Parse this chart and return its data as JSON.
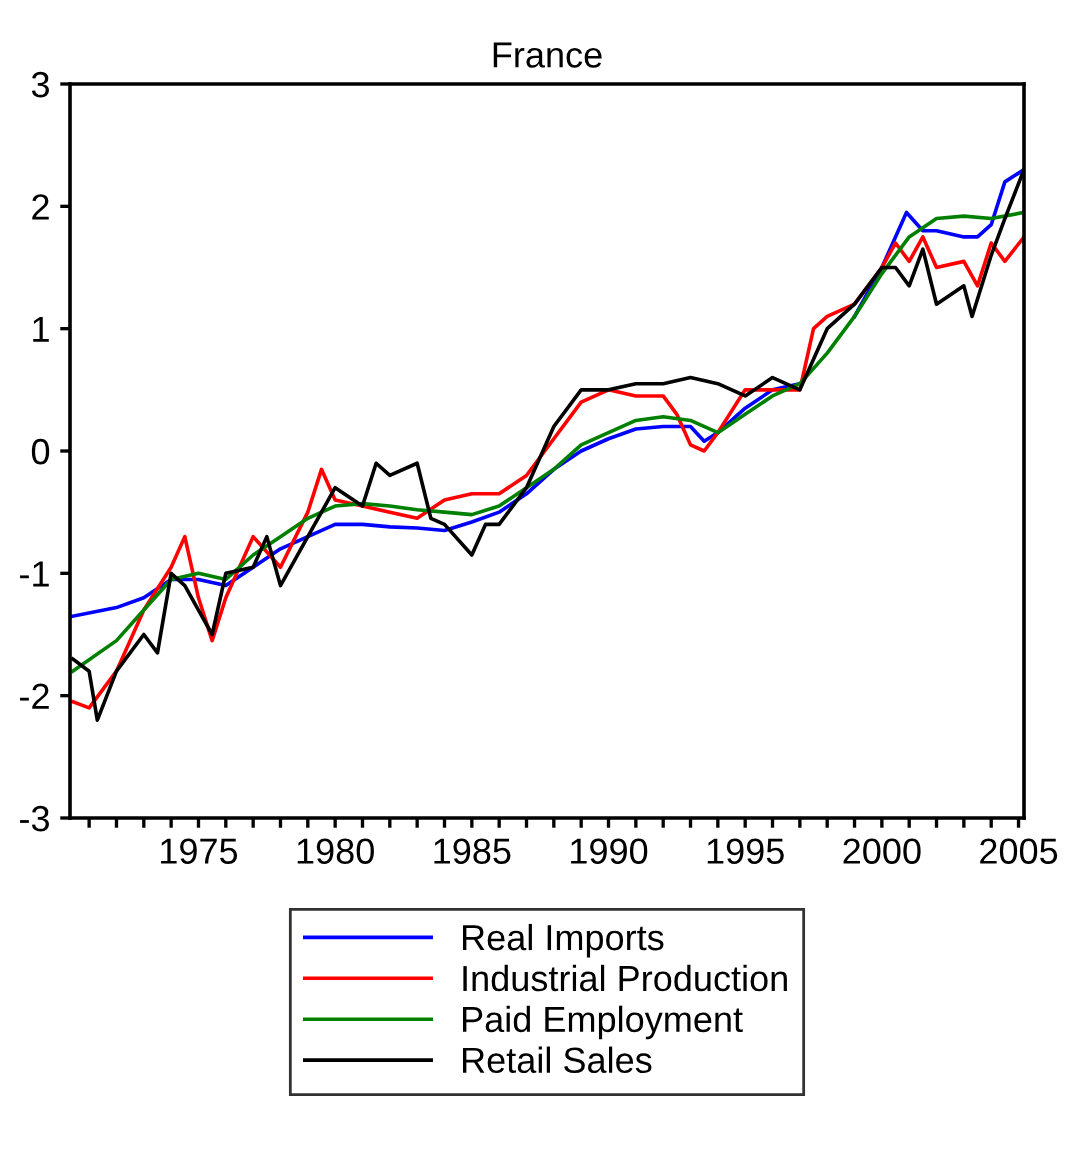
{
  "chart_data": {
    "type": "line",
    "title": "France",
    "xlim": [
      1970.3,
      2005.2
    ],
    "ylim": [
      -3,
      3
    ],
    "yticks": [
      -3,
      -2,
      -1,
      0,
      1,
      2,
      3
    ],
    "xticks": [
      {
        "value": 1971,
        "label": null
      },
      {
        "value": 1972,
        "label": null
      },
      {
        "value": 1973,
        "label": null
      },
      {
        "value": 1974,
        "label": null
      },
      1975,
      {
        "value": 1976,
        "label": null
      },
      {
        "value": 1977,
        "label": null
      },
      {
        "value": 1978,
        "label": null
      },
      {
        "value": 1979,
        "label": null
      },
      1980,
      {
        "value": 1981,
        "label": null
      },
      {
        "value": 1982,
        "label": null
      },
      {
        "value": 1983,
        "label": null
      },
      {
        "value": 1984,
        "label": null
      },
      1985,
      {
        "value": 1986,
        "label": null
      },
      {
        "value": 1987,
        "label": null
      },
      {
        "value": 1988,
        "label": null
      },
      {
        "value": 1989,
        "label": null
      },
      1990,
      {
        "value": 1991,
        "label": null
      },
      {
        "value": 1992,
        "label": null
      },
      {
        "value": 1993,
        "label": null
      },
      {
        "value": 1994,
        "label": null
      },
      1995,
      {
        "value": 1996,
        "label": null
      },
      {
        "value": 1997,
        "label": null
      },
      {
        "value": 1998,
        "label": null
      },
      {
        "value": 1999,
        "label": null
      },
      2000,
      {
        "value": 2001,
        "label": null
      },
      {
        "value": 2002,
        "label": null
      },
      {
        "value": 2003,
        "label": null
      },
      {
        "value": 2004,
        "label": null
      },
      2005
    ],
    "grid": false,
    "legend": "bottom",
    "marker": "none",
    "line_style": "solid",
    "series": [
      {
        "name": "Real Imports",
        "color": "#0000ff",
        "x": [
          1970.4,
          1972,
          1973,
          1974,
          1975,
          1976,
          1977,
          1978,
          1979,
          1980,
          1981,
          1982,
          1983,
          1984,
          1985,
          1986,
          1987,
          1988,
          1989,
          1990,
          1991,
          1992,
          1993,
          1993.5,
          1994,
          1995,
          1996,
          1997,
          1998,
          1999,
          2000,
          2000.9,
          2001.5,
          2002,
          2003,
          2003.5,
          2004,
          2004.5,
          2005.2
        ],
        "values": [
          -1.35,
          -1.28,
          -1.2,
          -1.05,
          -1.05,
          -1.1,
          -0.95,
          -0.8,
          -0.7,
          -0.6,
          -0.6,
          -0.62,
          -0.63,
          -0.65,
          -0.58,
          -0.5,
          -0.35,
          -0.15,
          0.0,
          0.1,
          0.18,
          0.2,
          0.2,
          0.08,
          0.15,
          0.35,
          0.5,
          0.55,
          null,
          1.1,
          1.5,
          1.95,
          1.8,
          1.8,
          1.75,
          1.75,
          1.85,
          2.2,
          2.3
        ]
      },
      {
        "name": "Industrial Production",
        "color": "#ff0000",
        "x": [
          1970.4,
          1971,
          1972,
          1973,
          1974,
          1974.5,
          1975,
          1975.5,
          1976,
          1977,
          1978,
          1979,
          1979.5,
          1980,
          1981,
          1982,
          1983,
          1984,
          1985,
          1986,
          1987,
          1988,
          1989,
          1990,
          1991,
          1992,
          1992.5,
          1993,
          1993.5,
          1994,
          1995,
          1996,
          1997,
          1997.5,
          1998,
          1999,
          2000,
          2000.5,
          2001,
          2001.5,
          2002,
          2003,
          2003.5,
          2004,
          2004.5,
          2005.2
        ],
        "values": [
          -2.05,
          -2.1,
          -1.8,
          -1.3,
          -0.95,
          -0.7,
          -1.2,
          -1.55,
          -1.2,
          -0.7,
          -0.95,
          -0.5,
          -0.15,
          -0.4,
          -0.45,
          -0.5,
          -0.55,
          -0.4,
          -0.35,
          -0.35,
          -0.2,
          0.1,
          0.4,
          0.5,
          0.45,
          0.45,
          0.3,
          0.05,
          0.0,
          0.15,
          0.5,
          0.5,
          0.5,
          1.0,
          1.1,
          1.2,
          1.5,
          1.7,
          1.55,
          1.75,
          1.5,
          1.55,
          1.35,
          1.7,
          1.55,
          1.75
        ]
      },
      {
        "name": "Paid Employment",
        "color": "#008000",
        "x": [
          1970.4,
          1972,
          1973,
          1974,
          1975,
          1976,
          1977,
          1978,
          1979,
          1980,
          1981,
          1982,
          1983,
          1984,
          1985,
          1986,
          1987,
          1988,
          1989,
          1990,
          1991,
          1992,
          1993,
          1994,
          1995,
          1996,
          1997,
          1998,
          1999,
          2000,
          2001,
          2002,
          2003,
          2004,
          2005.2
        ],
        "values": [
          -1.8,
          -1.55,
          -1.3,
          -1.05,
          -1.0,
          -1.05,
          -0.85,
          -0.7,
          -0.55,
          -0.45,
          -0.43,
          -0.45,
          -0.48,
          -0.5,
          -0.52,
          -0.45,
          -0.3,
          -0.15,
          0.05,
          0.15,
          0.25,
          0.28,
          0.25,
          0.15,
          0.3,
          0.45,
          0.55,
          0.8,
          1.1,
          1.45,
          1.75,
          1.9,
          1.92,
          1.9,
          1.95
        ]
      },
      {
        "name": "Retail Sales",
        "color": "#000000",
        "x": [
          1970.4,
          1971,
          1971.3,
          1972,
          1973,
          1973.5,
          1974,
          1974.5,
          1975,
          1975.5,
          1976,
          1977,
          1977.5,
          1978,
          1979,
          1979.5,
          1980,
          1981,
          1981.5,
          1982,
          1983,
          1983.5,
          1984,
          1985,
          1985.5,
          1986,
          1987,
          1988,
          1989,
          1990,
          1991,
          1992,
          1993,
          1994,
          1995,
          1996,
          1997,
          1998,
          1999,
          2000,
          2000.5,
          2001,
          2001.5,
          2002,
          2003,
          2003.3,
          2004,
          2004.5,
          2005.2
        ],
        "values": [
          -1.7,
          -1.8,
          -2.2,
          -1.8,
          -1.5,
          -1.65,
          -1.0,
          -1.1,
          -1.3,
          -1.5,
          -1.0,
          -0.95,
          -0.7,
          -1.1,
          -0.7,
          -0.5,
          -0.3,
          -0.45,
          -0.1,
          -0.2,
          -0.1,
          -0.55,
          -0.6,
          -0.85,
          -0.6,
          -0.6,
          -0.3,
          0.2,
          0.5,
          0.5,
          0.55,
          0.55,
          0.6,
          0.55,
          0.45,
          0.6,
          0.5,
          1.0,
          1.2,
          1.5,
          1.5,
          1.35,
          1.65,
          1.2,
          1.35,
          1.1,
          1.6,
          1.9,
          2.3
        ]
      }
    ]
  }
}
